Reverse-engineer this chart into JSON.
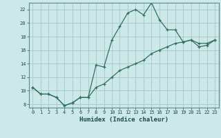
{
  "xlabel": "Humidex (Indice chaleur)",
  "bg_color": "#cce8e8",
  "grid_color": "#aacccc",
  "line_color": "#2d7060",
  "xlim": [
    -0.5,
    23.5
  ],
  "ylim": [
    7.5,
    23.0
  ],
  "xticks": [
    0,
    1,
    2,
    3,
    4,
    5,
    6,
    7,
    8,
    9,
    10,
    11,
    12,
    13,
    14,
    15,
    16,
    17,
    18,
    19,
    20,
    21,
    22,
    23
  ],
  "yticks": [
    8,
    10,
    12,
    14,
    16,
    18,
    20,
    22
  ],
  "curve1_x": [
    0,
    1,
    2,
    3,
    4,
    5,
    6,
    7,
    8,
    9,
    10,
    11,
    12,
    13,
    14,
    15,
    16,
    17,
    18,
    19,
    20,
    21,
    22,
    23
  ],
  "curve1_y": [
    10.5,
    9.5,
    9.5,
    9.0,
    7.8,
    8.2,
    9.0,
    9.0,
    13.8,
    13.5,
    17.5,
    19.5,
    21.5,
    22.0,
    21.2,
    23.0,
    20.5,
    19.0,
    19.0,
    17.2,
    17.5,
    16.5,
    16.7,
    17.5
  ],
  "curve2_x": [
    0,
    1,
    2,
    3,
    4,
    5,
    6,
    7,
    8,
    9,
    10,
    11,
    12,
    13,
    14,
    15,
    16,
    17,
    18,
    19,
    20,
    21,
    22,
    23
  ],
  "curve2_y": [
    10.5,
    9.5,
    9.5,
    9.0,
    7.8,
    8.2,
    9.0,
    9.0,
    10.5,
    11.0,
    12.0,
    13.0,
    13.5,
    14.0,
    14.5,
    15.5,
    16.0,
    16.5,
    17.0,
    17.2,
    17.5,
    17.0,
    17.0,
    17.5
  ]
}
